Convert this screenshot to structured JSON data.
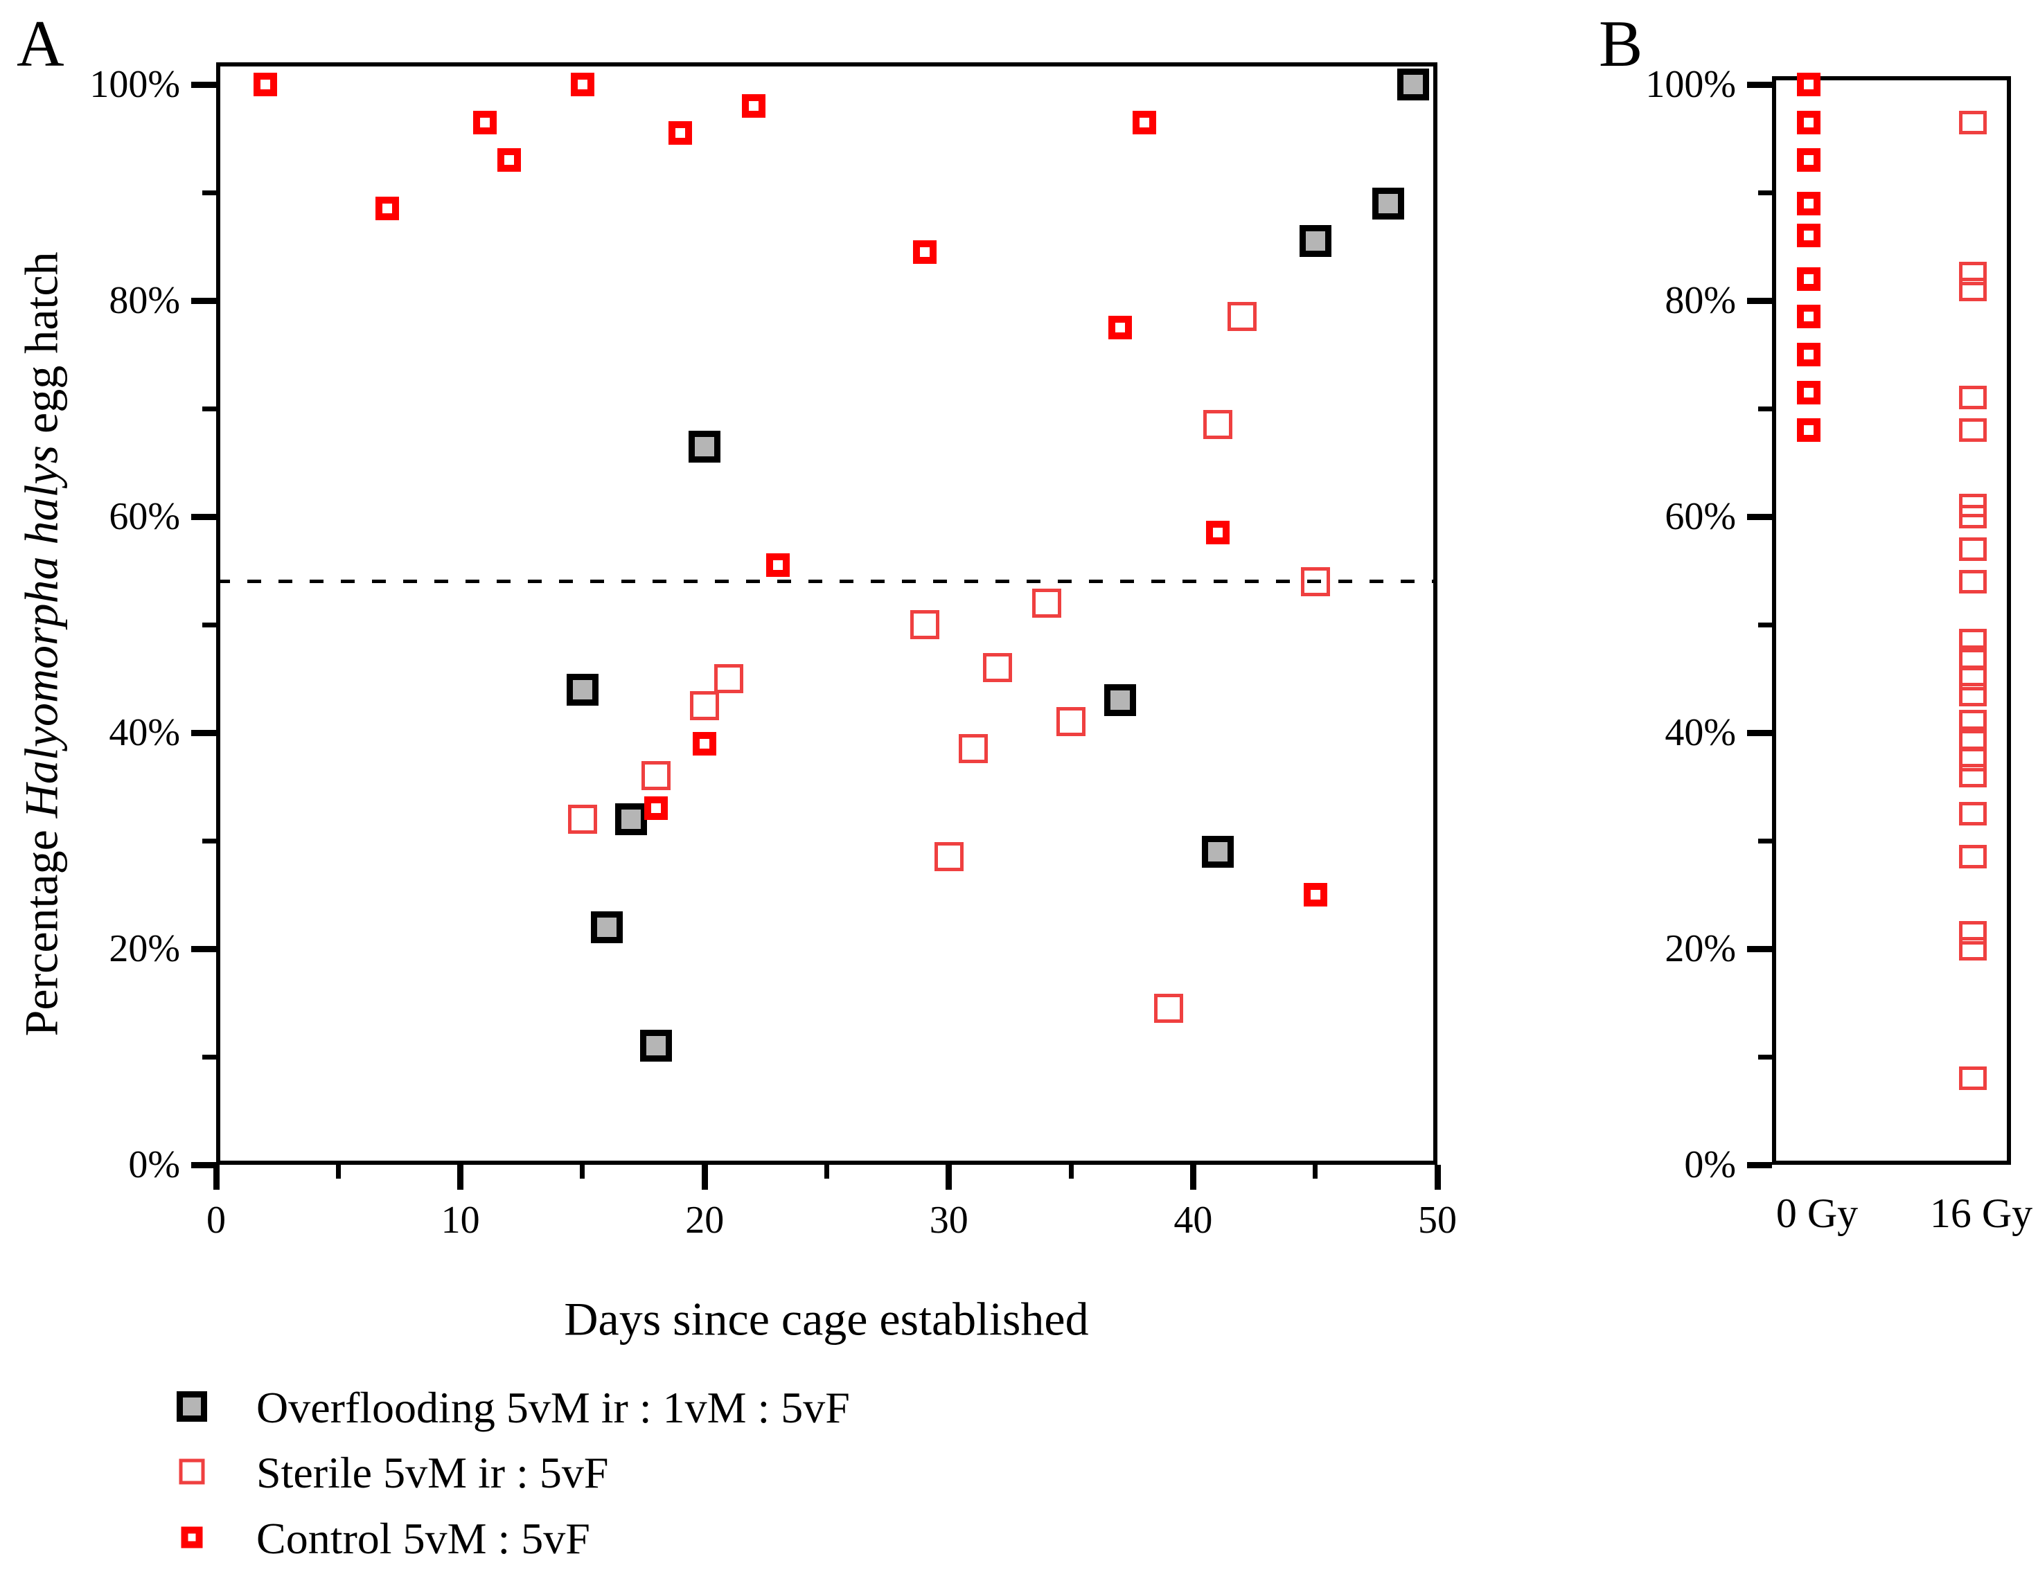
{
  "figure": {
    "background": "#ffffff",
    "panel_a_letter": "A",
    "panel_b_letter": "B"
  },
  "colors": {
    "control_red": "#ff0000",
    "sterile_red": "#ef4040",
    "overflooding_gray": "#b5b5b5",
    "axis_black": "#000000"
  },
  "legend": {
    "items": [
      {
        "label": "Overflooding 5vM ir : 1vM : 5vF",
        "marker": "overflooding"
      },
      {
        "label": "Sterile 5vM ir : 5vF",
        "marker": "sterile"
      },
      {
        "label": "Control 5vM : 5vF",
        "marker": "control"
      }
    ]
  },
  "chart_data": [
    {
      "id": "A",
      "type": "scatter",
      "xlabel": "Days since cage established",
      "ylabel": "Percentage Halyomorpha halys egg hatch",
      "ylabel_parts": [
        "Percentage ",
        "Halyomorpha halys",
        " egg hatch"
      ],
      "xlim": [
        0,
        50
      ],
      "ylim": [
        0,
        100
      ],
      "x_major_ticks": [
        0,
        10,
        20,
        30,
        40,
        50
      ],
      "x_tick_labels": [
        "0",
        "10",
        "20",
        "30",
        "40",
        "50"
      ],
      "x_minor_ticks": [
        5,
        15,
        25,
        35,
        45
      ],
      "y_major_ticks": [
        0,
        20,
        40,
        60,
        80,
        100
      ],
      "y_tick_labels": [
        "0%",
        "20%",
        "40%",
        "60%",
        "80%",
        "100%"
      ],
      "y_minor_ticks": [
        10,
        30,
        50,
        70,
        90
      ],
      "grid": false,
      "dashed_reference_line_y": 54,
      "series": [
        {
          "name": "Overflooding 5vM ir : 1vM : 5vF",
          "marker": "overflooding",
          "points": [
            [
              15,
              44
            ],
            [
              16,
              22
            ],
            [
              17,
              32
            ],
            [
              18,
              11
            ],
            [
              20,
              66.5
            ],
            [
              37,
              43
            ],
            [
              41,
              29
            ],
            [
              45,
              85.5
            ],
            [
              48,
              89
            ],
            [
              49,
              100
            ]
          ]
        },
        {
          "name": "Sterile 5vM ir : 5vF",
          "marker": "sterile",
          "points": [
            [
              15,
              32
            ],
            [
              18,
              36
            ],
            [
              20,
              42.5
            ],
            [
              21,
              45
            ],
            [
              29,
              50
            ],
            [
              30,
              28.5
            ],
            [
              31,
              38.5
            ],
            [
              32,
              46
            ],
            [
              34,
              52
            ],
            [
              35,
              41
            ],
            [
              39,
              14.5
            ],
            [
              41,
              68.5
            ],
            [
              42,
              78.5
            ],
            [
              45,
              54
            ]
          ]
        },
        {
          "name": "Control 5vM : 5vF",
          "marker": "control",
          "points": [
            [
              2,
              100
            ],
            [
              7,
              88.5
            ],
            [
              11,
              96.5
            ],
            [
              12,
              93
            ],
            [
              15,
              100
            ],
            [
              18,
              33
            ],
            [
              19,
              95.5
            ],
            [
              20,
              39
            ],
            [
              22,
              98
            ],
            [
              23,
              55.5
            ],
            [
              29,
              84.5
            ],
            [
              37,
              77.5
            ],
            [
              38,
              96.5
            ],
            [
              41,
              58.5
            ],
            [
              45,
              25
            ]
          ]
        }
      ]
    },
    {
      "id": "B",
      "type": "scatter",
      "categories": [
        "0 Gy",
        "16 Gy"
      ],
      "ylim": [
        0,
        100
      ],
      "y_major_ticks": [
        0,
        20,
        40,
        60,
        80,
        100
      ],
      "y_tick_labels": [
        "0%",
        "20%",
        "40%",
        "60%",
        "80%",
        "100%"
      ],
      "y_minor_ticks": [
        10,
        30,
        50,
        70,
        90
      ],
      "grid": false,
      "series": [
        {
          "name": "0 Gy",
          "marker": "control",
          "values": [
            100,
            96.5,
            93,
            89,
            86,
            82,
            78.5,
            75,
            71.5,
            68
          ]
        },
        {
          "name": "16 Gy",
          "marker": "sterile",
          "values": [
            96.5,
            82.5,
            81,
            71,
            68,
            61,
            60,
            57,
            54,
            48.5,
            47,
            45,
            43.5,
            41,
            39.5,
            37.5,
            36,
            32.5,
            28.5,
            21.5,
            20,
            8
          ]
        }
      ]
    }
  ]
}
